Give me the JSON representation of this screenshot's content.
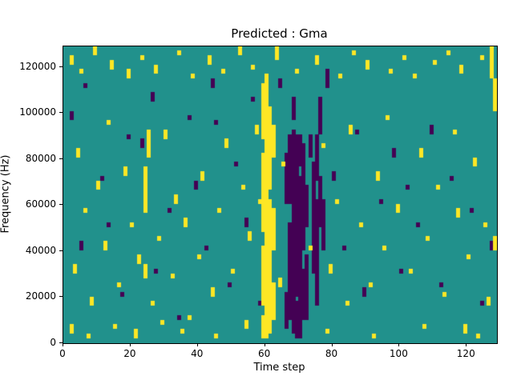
{
  "chart_data": {
    "type": "heatmap",
    "title": "Predicted : Gma",
    "xlabel": "Time step",
    "ylabel": "Frequency (Hz)",
    "x_range": [
      0,
      129
    ],
    "y_range": [
      0,
      129000
    ],
    "x_ticks": [
      0,
      20,
      40,
      60,
      80,
      100,
      120
    ],
    "y_ticks": [
      0,
      20000,
      40000,
      60000,
      80000,
      100000,
      120000
    ],
    "grid_cols": 129,
    "grid_rows": 64,
    "legend": "none",
    "grid": false,
    "colors": {
      "background_mid": "#21918c",
      "high_yellow": "#fde725",
      "low_purple": "#440154",
      "axes": "#000000"
    },
    "cells": {
      "comment": "runs are [column, rowStart, rowEnd] inclusive; row 0 = bottom (0 Hz)",
      "yellow_runs": [
        [
          59,
          1,
          5
        ],
        [
          59,
          8,
          20
        ],
        [
          59,
          24,
          40
        ],
        [
          59,
          44,
          55
        ],
        [
          60,
          1,
          57
        ],
        [
          61,
          2,
          30
        ],
        [
          61,
          33,
          50
        ],
        [
          62,
          5,
          12
        ],
        [
          62,
          20,
          28
        ],
        [
          62,
          40,
          46
        ],
        [
          24,
          28,
          37
        ],
        [
          25,
          40,
          45
        ],
        [
          24,
          14,
          16
        ],
        [
          127,
          57,
          63
        ],
        [
          128,
          50,
          56
        ],
        [
          128,
          20,
          22
        ],
        [
          126,
          8,
          9
        ],
        [
          2,
          60,
          61
        ],
        [
          5,
          58,
          58
        ],
        [
          9,
          62,
          63
        ],
        [
          14,
          59,
          60
        ],
        [
          19,
          57,
          58
        ],
        [
          23,
          61,
          61
        ],
        [
          27,
          58,
          59
        ],
        [
          34,
          62,
          62
        ],
        [
          38,
          57,
          57
        ],
        [
          43,
          60,
          61
        ],
        [
          47,
          58,
          58
        ],
        [
          52,
          62,
          63
        ],
        [
          56,
          59,
          59
        ],
        [
          63,
          61,
          63
        ],
        [
          69,
          58,
          58
        ],
        [
          75,
          60,
          61
        ],
        [
          82,
          57,
          57
        ],
        [
          86,
          62,
          62
        ],
        [
          90,
          59,
          60
        ],
        [
          97,
          58,
          58
        ],
        [
          101,
          61,
          61
        ],
        [
          104,
          57,
          57
        ],
        [
          110,
          60,
          60
        ],
        [
          114,
          62,
          62
        ],
        [
          118,
          58,
          59
        ],
        [
          124,
          61,
          61
        ],
        [
          3,
          15,
          16
        ],
        [
          4,
          40,
          41
        ],
        [
          6,
          28,
          28
        ],
        [
          8,
          8,
          9
        ],
        [
          10,
          33,
          34
        ],
        [
          12,
          20,
          21
        ],
        [
          13,
          47,
          47
        ],
        [
          16,
          12,
          12
        ],
        [
          18,
          36,
          37
        ],
        [
          20,
          25,
          25
        ],
        [
          22,
          17,
          18
        ],
        [
          26,
          8,
          8
        ],
        [
          28,
          22,
          22
        ],
        [
          30,
          44,
          45
        ],
        [
          32,
          14,
          14
        ],
        [
          33,
          30,
          31
        ],
        [
          36,
          25,
          26
        ],
        [
          37,
          5,
          5
        ],
        [
          40,
          18,
          18
        ],
        [
          41,
          35,
          36
        ],
        [
          44,
          10,
          11
        ],
        [
          46,
          28,
          28
        ],
        [
          48,
          42,
          43
        ],
        [
          50,
          15,
          15
        ],
        [
          53,
          33,
          33
        ],
        [
          55,
          22,
          23
        ],
        [
          57,
          45,
          46
        ],
        [
          58,
          30,
          30
        ],
        [
          64,
          12,
          13
        ],
        [
          65,
          38,
          38
        ],
        [
          73,
          20,
          20
        ],
        [
          77,
          42,
          42
        ],
        [
          79,
          15,
          16
        ],
        [
          81,
          30,
          30
        ],
        [
          84,
          8,
          8
        ],
        [
          85,
          45,
          46
        ],
        [
          88,
          25,
          25
        ],
        [
          91,
          12,
          12
        ],
        [
          93,
          35,
          36
        ],
        [
          95,
          20,
          20
        ],
        [
          96,
          48,
          48
        ],
        [
          99,
          28,
          29
        ],
        [
          103,
          15,
          15
        ],
        [
          106,
          40,
          41
        ],
        [
          108,
          22,
          22
        ],
        [
          111,
          33,
          33
        ],
        [
          113,
          10,
          10
        ],
        [
          116,
          45,
          45
        ],
        [
          117,
          27,
          28
        ],
        [
          120,
          18,
          18
        ],
        [
          122,
          38,
          39
        ],
        [
          125,
          25,
          25
        ],
        [
          2,
          2,
          3
        ],
        [
          7,
          1,
          1
        ],
        [
          15,
          3,
          3
        ],
        [
          21,
          1,
          2
        ],
        [
          29,
          4,
          4
        ],
        [
          35,
          2,
          2
        ],
        [
          45,
          1,
          1
        ],
        [
          54,
          3,
          4
        ],
        [
          78,
          2,
          2
        ],
        [
          92,
          1,
          1
        ],
        [
          107,
          3,
          3
        ],
        [
          119,
          2,
          3
        ],
        [
          123,
          1,
          1
        ]
      ],
      "purple_runs": [
        [
          66,
          3,
          10
        ],
        [
          66,
          30,
          40
        ],
        [
          67,
          5,
          25
        ],
        [
          67,
          30,
          44
        ],
        [
          68,
          2,
          45
        ],
        [
          68,
          48,
          52
        ],
        [
          69,
          1,
          8
        ],
        [
          69,
          10,
          44
        ],
        [
          70,
          1,
          35
        ],
        [
          70,
          38,
          44
        ],
        [
          71,
          5,
          15
        ],
        [
          71,
          20,
          42
        ],
        [
          72,
          5,
          18
        ],
        [
          72,
          25,
          33
        ],
        [
          73,
          40,
          44
        ],
        [
          74,
          15,
          38
        ],
        [
          75,
          8,
          30
        ],
        [
          75,
          35,
          44
        ],
        [
          76,
          25,
          35
        ],
        [
          76,
          45,
          52
        ],
        [
          77,
          20,
          30
        ],
        [
          78,
          55,
          58
        ],
        [
          2,
          48,
          49
        ],
        [
          5,
          20,
          21
        ],
        [
          6,
          55,
          55
        ],
        [
          11,
          35,
          35
        ],
        [
          13,
          25,
          25
        ],
        [
          17,
          10,
          10
        ],
        [
          19,
          44,
          44
        ],
        [
          23,
          42,
          43
        ],
        [
          26,
          52,
          53
        ],
        [
          27,
          15,
          15
        ],
        [
          31,
          28,
          28
        ],
        [
          34,
          5,
          5
        ],
        [
          37,
          48,
          48
        ],
        [
          39,
          33,
          34
        ],
        [
          42,
          20,
          20
        ],
        [
          44,
          55,
          56
        ],
        [
          45,
          47,
          47
        ],
        [
          49,
          12,
          12
        ],
        [
          51,
          38,
          38
        ],
        [
          54,
          25,
          26
        ],
        [
          56,
          52,
          52
        ],
        [
          58,
          8,
          8
        ],
        [
          64,
          55,
          56
        ],
        [
          80,
          35,
          36
        ],
        [
          83,
          20,
          20
        ],
        [
          87,
          45,
          45
        ],
        [
          89,
          10,
          11
        ],
        [
          94,
          30,
          30
        ],
        [
          98,
          40,
          41
        ],
        [
          100,
          15,
          15
        ],
        [
          102,
          33,
          33
        ],
        [
          105,
          25,
          25
        ],
        [
          109,
          45,
          46
        ],
        [
          112,
          12,
          12
        ],
        [
          115,
          35,
          35
        ],
        [
          121,
          28,
          28
        ],
        [
          124,
          8,
          8
        ],
        [
          127,
          20,
          21
        ]
      ]
    }
  }
}
